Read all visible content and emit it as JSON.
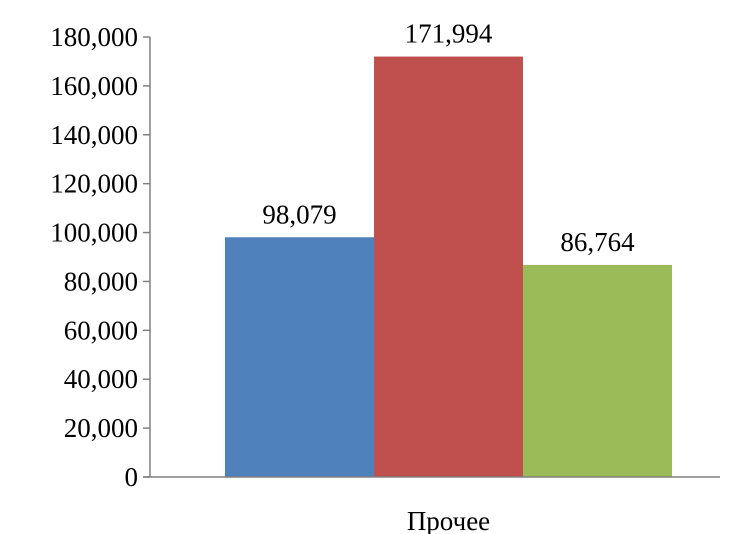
{
  "chart_data": {
    "type": "bar",
    "categories": [
      "Прочее"
    ],
    "series": [
      {
        "values": [
          98079
        ],
        "value_label": "98,079",
        "color": "#4F81BD"
      },
      {
        "values": [
          171994
        ],
        "value_label": "171,994",
        "color": "#C0504D"
      },
      {
        "values": [
          86764
        ],
        "value_label": "86,764",
        "color": "#9BBB59"
      }
    ],
    "yticks": [
      0,
      20000,
      40000,
      60000,
      80000,
      100000,
      120000,
      140000,
      160000,
      180000
    ],
    "ytick_labels": [
      "0",
      "20,000",
      "40,000",
      "60,000",
      "80,000",
      "100,000",
      "120,000",
      "140,000",
      "160,000",
      "180,000"
    ],
    "ylim": [
      0,
      180000
    ],
    "grid": false,
    "legend": "none",
    "title": "",
    "xlabel": "",
    "ylabel": ""
  }
}
